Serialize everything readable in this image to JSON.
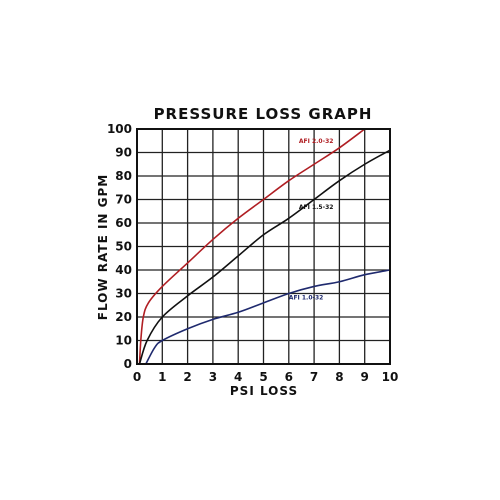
{
  "chart_data": {
    "type": "line",
    "title": "PRESSURE LOSS GRAPH",
    "xlabel": "PSI LOSS",
    "ylabel": "FLOW RATE IN GPM",
    "xlim": [
      0,
      10
    ],
    "ylim": [
      0,
      100
    ],
    "xticks": [
      0,
      1,
      2,
      3,
      4,
      5,
      6,
      7,
      8,
      9,
      10
    ],
    "yticks": [
      0,
      10,
      20,
      30,
      40,
      50,
      60,
      70,
      80,
      90,
      100
    ],
    "grid": true,
    "series": [
      {
        "name": "AFI 2.0-32",
        "color": "#b01e23",
        "points": [
          [
            0.1,
            0
          ],
          [
            0.15,
            10
          ],
          [
            0.25,
            20
          ],
          [
            0.45,
            26
          ],
          [
            1,
            33
          ],
          [
            2,
            43
          ],
          [
            3,
            53
          ],
          [
            4,
            62
          ],
          [
            5,
            70
          ],
          [
            6,
            78
          ],
          [
            7,
            85
          ],
          [
            8,
            92
          ],
          [
            9,
            100
          ]
        ]
      },
      {
        "name": "AFI 1.5-32",
        "color": "#111111",
        "points": [
          [
            0.1,
            0
          ],
          [
            0.4,
            10
          ],
          [
            1,
            20
          ],
          [
            2,
            29
          ],
          [
            3,
            37
          ],
          [
            4,
            46
          ],
          [
            5,
            55
          ],
          [
            6,
            62
          ],
          [
            7,
            70
          ],
          [
            8,
            78
          ],
          [
            9,
            85
          ],
          [
            10,
            91
          ]
        ]
      },
      {
        "name": "AFI 1.0-32",
        "color": "#1f2a6e",
        "points": [
          [
            0.35,
            0
          ],
          [
            0.7,
            7
          ],
          [
            1,
            10
          ],
          [
            2,
            15
          ],
          [
            3,
            19
          ],
          [
            4,
            22
          ],
          [
            5,
            26
          ],
          [
            6,
            30
          ],
          [
            7,
            33
          ],
          [
            8,
            35
          ],
          [
            9,
            38
          ],
          [
            10,
            40
          ]
        ]
      }
    ]
  }
}
